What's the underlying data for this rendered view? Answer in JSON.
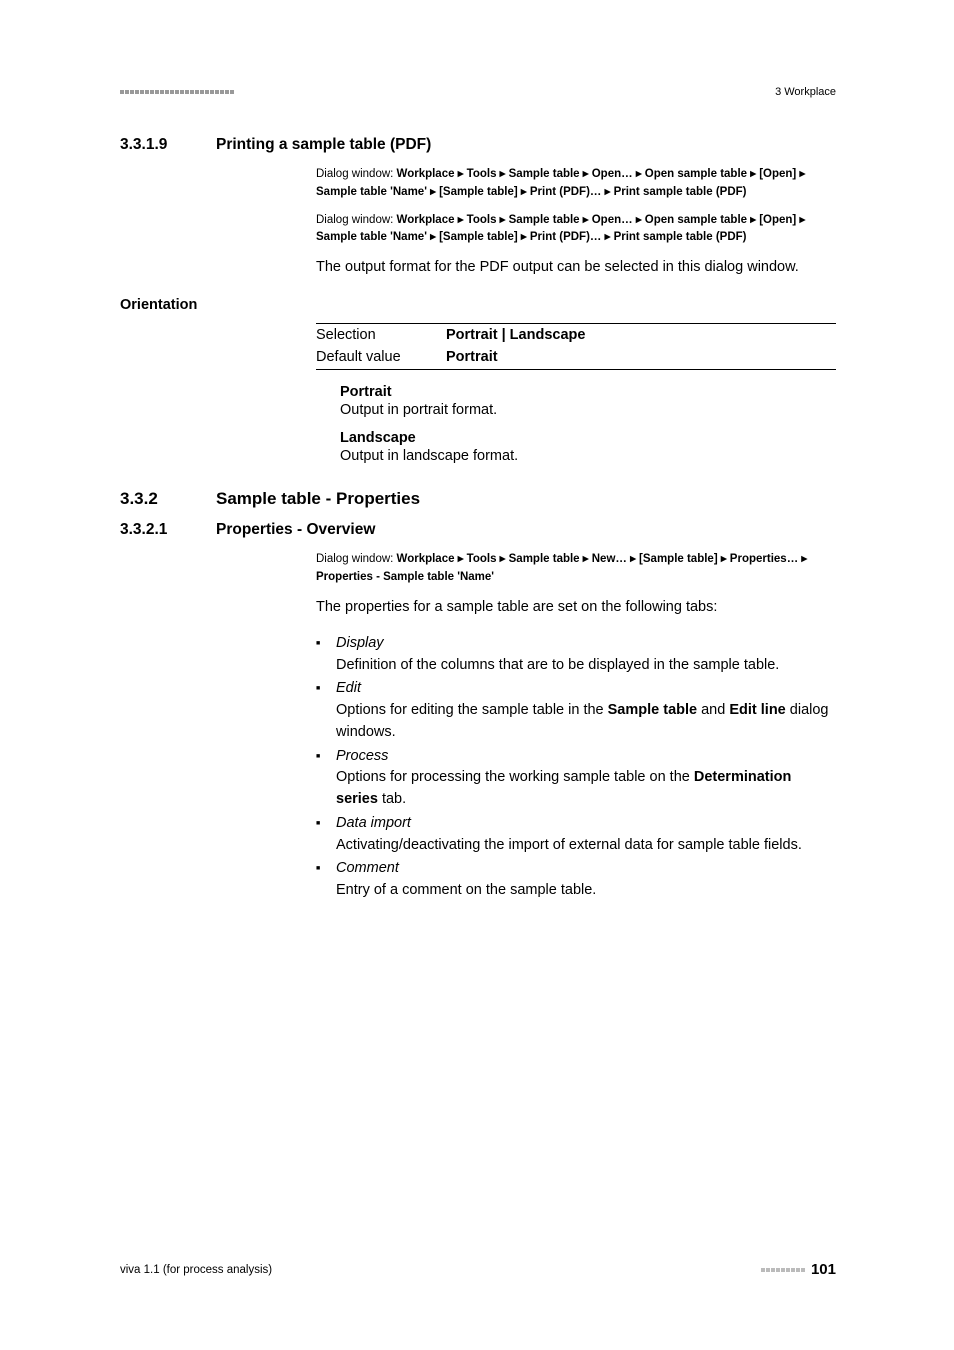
{
  "header": {
    "chapter": "3 Workplace"
  },
  "sec_3319": {
    "num": "3.3.1.9",
    "title": "Printing a sample table (PDF)",
    "path1_lead": "Dialog window: ",
    "path1_body": "Workplace ▸ Tools ▸ Sample table ▸ Open… ▸ Open sample table ▸ [Open] ▸ Sample table 'Name' ▸ [Sample table] ▸ Print (PDF)… ▸ Print sample table (PDF)",
    "path2_lead": "Dialog window: ",
    "path2_body": "Workplace ▸ Tools ▸ Sample table ▸ Open… ▸ Open sample table ▸ [Open] ▸ Sample table 'Name' ▸ [Sample table] ▸ Print (PDF)… ▸ Print sample table (PDF)",
    "body": "The output format for the PDF output can be selected in this dialog window."
  },
  "orientation": {
    "label": "Orientation",
    "selection_label": "Selection",
    "selection_value": "Portrait | Landscape",
    "default_label": "Default value",
    "default_value": "Portrait",
    "portrait_term": "Portrait",
    "portrait_desc": "Output in portrait format.",
    "landscape_term": "Landscape",
    "landscape_desc": "Output in landscape format."
  },
  "sec_332": {
    "num": "3.3.2",
    "title": "Sample table - Properties"
  },
  "sec_3321": {
    "num": "3.3.2.1",
    "title": "Properties - Overview",
    "path_lead": "Dialog window: ",
    "path_body": "Workplace ▸ Tools ▸ Sample table ▸ New… ▸ [Sample table] ▸ Properties… ▸ Properties - Sample table 'Name'",
    "body": "The properties for a sample table are set on the following tabs:",
    "items": {
      "display_head": "Display",
      "display_desc": "Definition of the columns that are to be displayed in the sample table.",
      "edit_head": "Edit",
      "edit_desc_1": "Options for editing the sample table in the ",
      "edit_b1": "Sample table",
      "edit_desc_2": " and ",
      "edit_b2": "Edit line",
      "edit_desc_3": " dialog windows.",
      "process_head": "Process",
      "process_desc_1": "Options for processing the working sample table on the ",
      "process_b1": "Determination series",
      "process_desc_2": " tab.",
      "dataimport_head": "Data import",
      "dataimport_desc": "Activating/deactivating the import of external data for sample table fields.",
      "comment_head": "Comment",
      "comment_desc": "Entry of a comment on the sample table."
    }
  },
  "footer": {
    "left": "viva 1.1 (for process analysis)",
    "page": "101"
  }
}
